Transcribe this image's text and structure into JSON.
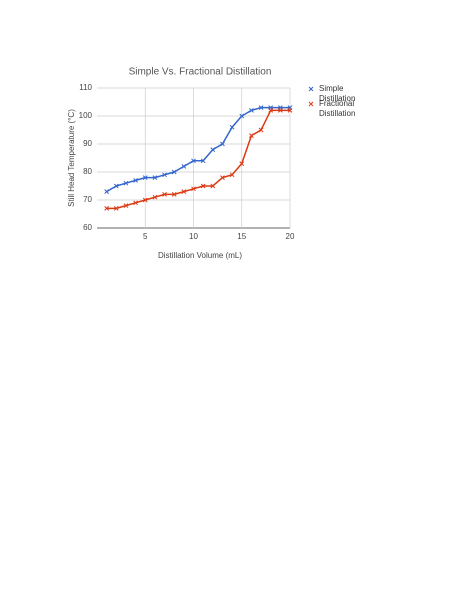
{
  "chart_data": {
    "type": "line",
    "title": "Simple Vs. Fractional Distillation",
    "x_label": "Distillation Volume (mL)",
    "y_label": "Still Head Temperature (°C)",
    "x": [
      1,
      2,
      3,
      4,
      5,
      6,
      7,
      8,
      9,
      10,
      11,
      12,
      13,
      14,
      15,
      16,
      17,
      18,
      19,
      20
    ],
    "series": [
      {
        "name": "Simple Distillation",
        "color": "#3366cc",
        "values": [
          73,
          75,
          76,
          77,
          78,
          78,
          79,
          80,
          82,
          84,
          84,
          88,
          90,
          96,
          100,
          102,
          103,
          103,
          103,
          103
        ]
      },
      {
        "name": "Fractional Distillation",
        "color": "#dc3912",
        "values": [
          67,
          67,
          68,
          69,
          70,
          71,
          72,
          72,
          73,
          74,
          75,
          75,
          78,
          79,
          83,
          93,
          95,
          102,
          102,
          102
        ]
      }
    ],
    "xlim": [
      0,
      20
    ],
    "xticks": [
      5,
      10,
      15,
      20
    ],
    "ylim": [
      60,
      110
    ],
    "yticks": [
      60,
      70,
      80,
      90,
      100,
      110
    ],
    "grid": true
  }
}
